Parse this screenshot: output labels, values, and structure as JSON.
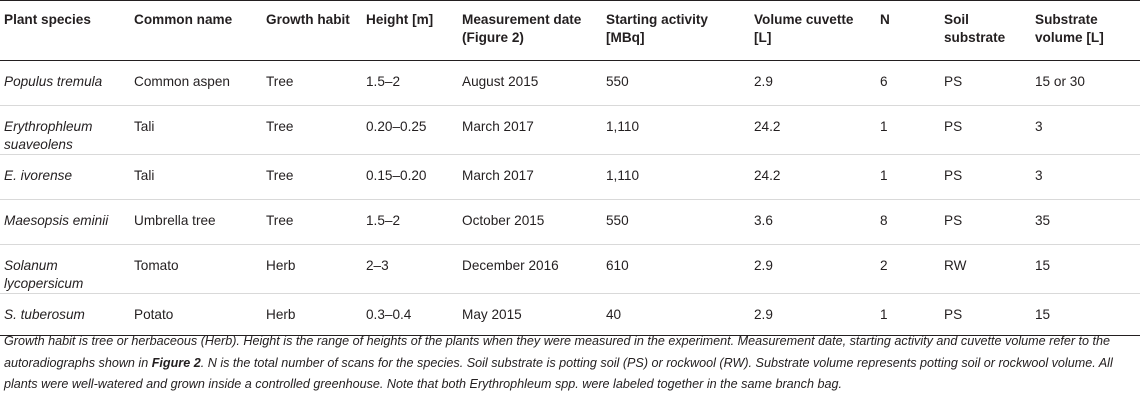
{
  "table": {
    "headers": [
      "Plant species",
      "Common name",
      "Growth habit",
      "Height [m]",
      "Measurement date (Figure 2)",
      "Starting activity [MBq]",
      "Volume cuvette [L]",
      "N",
      "Soil substrate",
      "Substrate volume [L]"
    ],
    "rows": [
      [
        "Populus tremula",
        "Common aspen",
        "Tree",
        "1.5–2",
        "August 2015",
        "550",
        "2.9",
        "6",
        "PS",
        "15 or 30"
      ],
      [
        "Erythrophleum suaveolens",
        "Tali",
        "Tree",
        "0.20–0.25",
        "March 2017",
        "1,110",
        "24.2",
        "1",
        "PS",
        "3"
      ],
      [
        "E. ivorense",
        "Tali",
        "Tree",
        "0.15–0.20",
        "March 2017",
        "1,110",
        "24.2",
        "1",
        "PS",
        "3"
      ],
      [
        "Maesopsis eminii",
        "Umbrella tree",
        "Tree",
        "1.5–2",
        "October 2015",
        "550",
        "3.6",
        "8",
        "PS",
        "35"
      ],
      [
        "Solanum lycopersicum",
        "Tomato",
        "Herb",
        "2–3",
        "December 2016",
        "610",
        "2.9",
        "2",
        "RW",
        "15"
      ],
      [
        "S. tuberosum",
        "Potato",
        "Herb",
        "0.3–0.4",
        "May 2015",
        "40",
        "2.9",
        "1",
        "PS",
        "15"
      ]
    ]
  },
  "caption": {
    "part1": "Growth habit is tree or herbaceous (Herb). Height is the range of heights of the plants when they were measured in the experiment. Measurement date, starting activity and cuvette volume refer to the autoradiographs shown in ",
    "figure_ref": "Figure 2",
    "part2": ". N is the total number of scans for the species. Soil substrate is potting soil (PS) or rockwool (RW). Substrate volume represents potting soil or rockwool volume. All plants were well-watered and grown inside a controlled greenhouse. Note that both Erythrophleum spp. were labeled together in the same branch bag."
  }
}
